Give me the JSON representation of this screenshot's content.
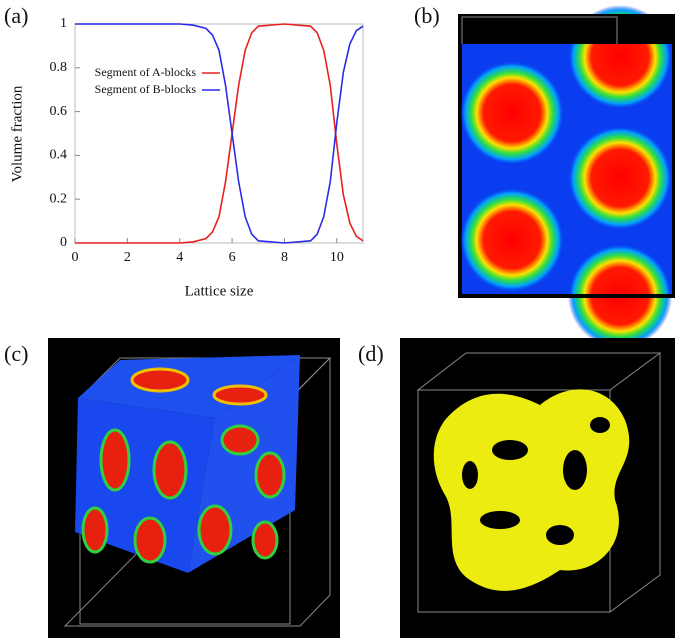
{
  "panels": [
    "(a)",
    "(b)",
    "(c)",
    "(d)"
  ],
  "chart_data": {
    "type": "line",
    "x_label": "Lattice size",
    "y_label": "Volume fraction",
    "x": [
      0,
      1,
      2,
      3,
      4,
      4.5,
      5,
      5.25,
      5.5,
      5.75,
      6,
      6.25,
      6.5,
      6.75,
      7,
      8,
      9,
      9.25,
      9.5,
      9.75,
      10,
      10.25,
      10.5,
      10.75,
      11
    ],
    "series": [
      {
        "name": "Segment of A-blocks",
        "color": "#e8211f",
        "values": [
          0,
          0,
          0,
          0,
          0,
          0.005,
          0.02,
          0.05,
          0.12,
          0.28,
          0.5,
          0.72,
          0.88,
          0.96,
          0.99,
          1,
          0.99,
          0.96,
          0.88,
          0.72,
          0.45,
          0.22,
          0.09,
          0.03,
          0.01
        ]
      },
      {
        "name": "Segment of B-blocks",
        "color": "#2a2ae8",
        "values": [
          1,
          1,
          1,
          1,
          1,
          0.995,
          0.98,
          0.95,
          0.88,
          0.72,
          0.5,
          0.28,
          0.12,
          0.04,
          0.01,
          0,
          0.01,
          0.04,
          0.12,
          0.28,
          0.55,
          0.78,
          0.91,
          0.97,
          0.99
        ]
      }
    ],
    "xlim": [
      0,
      11
    ],
    "xticks": [
      0,
      2,
      4,
      6,
      8,
      10
    ],
    "ylim": [
      0,
      1
    ],
    "yticks": [
      0,
      0.2,
      0.4,
      0.6,
      0.8,
      1
    ]
  }
}
